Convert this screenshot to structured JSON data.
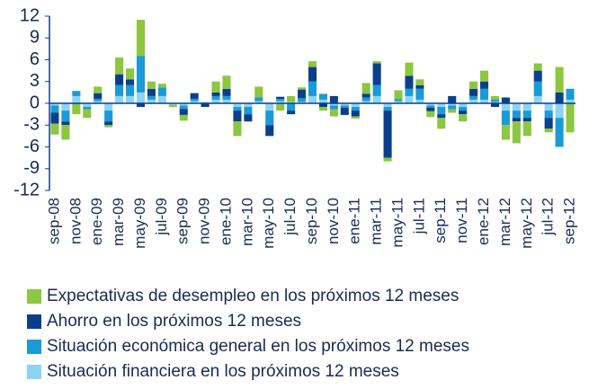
{
  "chart_data": {
    "type": "bar",
    "stacked": true,
    "categories": [
      "sep-08",
      null,
      "nov-08",
      null,
      "ene-09",
      null,
      "mar-09",
      null,
      "may-09",
      null,
      "jul-09",
      null,
      "sep-09",
      null,
      "nov-09",
      null,
      "ene-10",
      null,
      "mar-10",
      null,
      "may-10",
      null,
      "jul-10",
      null,
      "sep-10",
      null,
      "nov-10",
      null,
      "ene-11",
      null,
      "mar-11",
      null,
      "may-11",
      null,
      "jul-11",
      null,
      "sep-11",
      null,
      "nov-11",
      null,
      "ene-12",
      null,
      "mar-12",
      null,
      "may-12",
      null,
      "jul-12",
      null,
      "sep-12"
    ],
    "series": [
      {
        "name": "Expectativas de desempleo en los próximos 12 meses",
        "color": "#8dc63f",
        "values": [
          -1.5,
          -2,
          -1.5,
          -1.2,
          0.9,
          -0.3,
          2.3,
          1.5,
          5,
          1,
          0.5,
          -0.3,
          -0.8,
          0,
          0,
          1.5,
          1.8,
          -2,
          0,
          1.5,
          0,
          -1,
          0.8,
          0.3,
          0.8,
          -0.5,
          -1,
          0,
          -0.3,
          1.5,
          0.3,
          -0.5,
          1.2,
          1.8,
          0.8,
          -0.8,
          -1.5,
          -0.5,
          -1,
          1,
          1.5,
          0.5,
          -2,
          -3,
          -2,
          1,
          -0.5,
          3.5,
          -4
        ]
      },
      {
        "name": "Ahorro en los próximos 12 meses",
        "color": "#0b3f8c",
        "values": [
          -1.5,
          -0.5,
          0,
          0,
          0.8,
          -0.5,
          1.5,
          0.8,
          -0.5,
          1,
          0,
          0,
          -0.8,
          0.8,
          -0.5,
          0.5,
          1,
          -1.5,
          -1,
          0,
          -1.5,
          0.3,
          -0.5,
          1.2,
          2,
          -0.5,
          1,
          -1,
          -0.8,
          0.5,
          3,
          -6.5,
          0,
          1.8,
          0.5,
          -0.5,
          -0.5,
          1,
          -0.5,
          1,
          1,
          -0.5,
          0.8,
          -0.5,
          -0.5,
          1.5,
          -1.5,
          1.5,
          0
        ]
      },
      {
        "name": "Situación económica general en los próximos 12 meses",
        "color": "#1a9ad6",
        "values": [
          -1,
          -1.5,
          0.7,
          -0.3,
          0.3,
          -1.5,
          1.5,
          1.5,
          5,
          0.5,
          1.2,
          0,
          -0.5,
          0.3,
          0,
          0.5,
          0.5,
          -0.5,
          -1,
          0.5,
          -2,
          0.3,
          -1,
          0.5,
          2,
          0.8,
          -0.5,
          -0.3,
          -0.5,
          0.5,
          1.5,
          -0.5,
          0.3,
          1,
          1.5,
          -0.3,
          -1,
          -0.5,
          -0.5,
          0.5,
          1.5,
          0.3,
          -2,
          -1,
          -1,
          2,
          -1,
          -4,
          1.5
        ]
      },
      {
        "name": "Situación financiera en los próximos 12 meses",
        "color": "#8dd3f3",
        "values": [
          -0.3,
          -1,
          1,
          -0.5,
          0.3,
          -1,
          1,
          1,
          1.5,
          0.5,
          1,
          -0.2,
          -0.3,
          0.3,
          0.2,
          0.5,
          0.5,
          -0.5,
          -0.5,
          0.3,
          -1,
          0.3,
          0.2,
          0.2,
          1,
          0.5,
          -0.3,
          -0.3,
          -0.5,
          0.3,
          1,
          -0.5,
          0.3,
          1,
          0.5,
          -0.3,
          -0.5,
          -0.3,
          -0.5,
          0.5,
          0.5,
          0.2,
          -1,
          -1,
          -1,
          1,
          -1,
          -2,
          0.5
        ]
      }
    ],
    "ylim": [
      -12,
      12
    ],
    "yticks": [
      -12,
      -9,
      -6,
      -3,
      0,
      3,
      6,
      9,
      12
    ]
  }
}
